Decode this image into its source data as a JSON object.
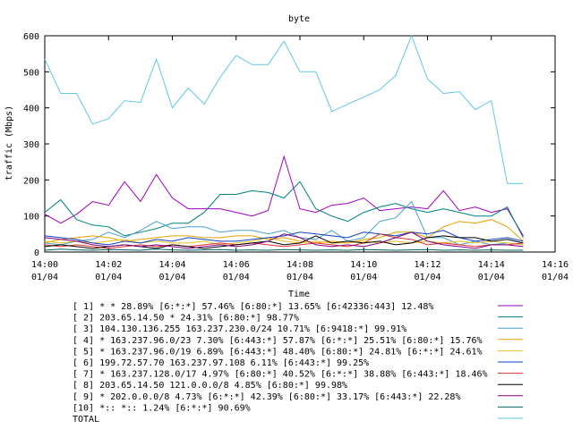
{
  "chart_data": {
    "type": "line",
    "title": "byte",
    "xlabel": "Time",
    "ylabel": "traffic (Mbps)",
    "ylim": [
      0,
      600
    ],
    "yticks": [
      0,
      100,
      200,
      300,
      400,
      500,
      600
    ],
    "xlim_minutes": [
      0,
      16
    ],
    "xticks": [
      {
        "minute": 0,
        "time": "14:00",
        "date": "01/04"
      },
      {
        "minute": 2,
        "time": "14:02",
        "date": "01/04"
      },
      {
        "minute": 4,
        "time": "14:04",
        "date": "01/04"
      },
      {
        "minute": 6,
        "time": "14:06",
        "date": "01/04"
      },
      {
        "minute": 8,
        "time": "14:08",
        "date": "01/04"
      },
      {
        "minute": 10,
        "time": "14:10",
        "date": "01/04"
      },
      {
        "minute": 12,
        "time": "14:12",
        "date": "01/04"
      },
      {
        "minute": 14,
        "time": "14:14",
        "date": "01/04"
      },
      {
        "minute": 16,
        "time": "14:16",
        "date": "01/04"
      }
    ],
    "x": [
      0.0,
      0.5,
      1.0,
      1.5,
      2.0,
      2.5,
      3.0,
      3.5,
      4.0,
      4.5,
      5.0,
      5.5,
      6.0,
      6.5,
      7.0,
      7.5,
      8.0,
      8.5,
      9.0,
      9.5,
      10.0,
      10.5,
      11.0,
      11.5,
      12.0,
      12.5,
      13.0,
      13.5,
      14.0,
      14.5,
      15.0
    ],
    "grid": false,
    "legend_position": "bottom",
    "series": [
      {
        "name": "[ 1] * * 28.89%  [6:*:*] 57.46% [6:80:*] 13.65% [6:42336:443] 12.48%",
        "color": "#a000c0",
        "values": [
          105,
          80,
          105,
          140,
          130,
          195,
          140,
          215,
          150,
          120,
          120,
          120,
          110,
          100,
          115,
          265,
          120,
          110,
          130,
          135,
          150,
          115,
          120,
          125,
          120,
          170,
          115,
          125,
          110,
          120,
          45
        ]
      },
      {
        "name": "[ 2] 203.65.14.50 * 24.31%  [6:80:*] 98.77%",
        "color": "#008080",
        "values": [
          110,
          145,
          90,
          75,
          70,
          45,
          55,
          65,
          80,
          80,
          110,
          160,
          160,
          170,
          165,
          150,
          195,
          120,
          100,
          85,
          110,
          125,
          135,
          120,
          110,
          120,
          110,
          100,
          100,
          125,
          40
        ]
      },
      {
        "name": "[ 3] 104.130.136.255 163.237.230.0/24 10.71%  [6:9418:*] 99.91%",
        "color": "#48a0d0",
        "values": [
          25,
          20,
          30,
          35,
          55,
          40,
          60,
          85,
          65,
          70,
          70,
          55,
          60,
          60,
          50,
          60,
          40,
          35,
          60,
          30,
          40,
          85,
          95,
          140,
          40,
          40,
          20,
          30,
          20,
          25,
          20
        ]
      },
      {
        "name": "[ 4] * 163.237.96.0/23 7.30%  [6:443:*] 57.87% [6:*:*] 25.51% [6:80:*] 15.76%",
        "color": "#e8a000",
        "values": [
          25,
          35,
          40,
          45,
          40,
          30,
          35,
          40,
          45,
          45,
          40,
          40,
          45,
          45,
          35,
          40,
          30,
          25,
          30,
          25,
          35,
          40,
          55,
          55,
          40,
          70,
          85,
          80,
          90,
          70,
          30
        ]
      },
      {
        "name": "[ 5] * 163.237.96.0/19 6.89%  [6:443:*] 48.40% [6:80:*] 24.81% [6:*:*] 24.61%",
        "color": "#e8c020",
        "values": [
          30,
          25,
          30,
          25,
          30,
          35,
          25,
          30,
          25,
          25,
          30,
          20,
          25,
          30,
          40,
          30,
          25,
          30,
          25,
          25,
          30,
          25,
          30,
          25,
          30,
          25,
          30,
          25,
          30,
          25,
          20
        ]
      },
      {
        "name": "[ 6] 199.72.57.70 163.237.97.108 6.11%  [6:443:*] 99.25%",
        "color": "#1040c0",
        "values": [
          45,
          40,
          35,
          25,
          20,
          30,
          25,
          35,
          30,
          40,
          35,
          30,
          30,
          35,
          40,
          45,
          55,
          50,
          45,
          40,
          55,
          50,
          45,
          55,
          50,
          60,
          40,
          30,
          35,
          40,
          30
        ]
      },
      {
        "name": "[ 7] * 163.237.128.0/17 4.97%  [6:80:*] 40.52% [6:*:*] 38.88% [6:443:*] 18.46%",
        "color": "#e03030",
        "values": [
          20,
          15,
          20,
          15,
          10,
          15,
          20,
          15,
          20,
          15,
          20,
          25,
          20,
          25,
          20,
          15,
          20,
          25,
          20,
          15,
          25,
          50,
          40,
          35,
          20,
          25,
          20,
          15,
          20,
          20,
          25
        ]
      },
      {
        "name": "[ 8] 203.65.14.50 121.0.0.0/8 4.85%  [6:80:*] 99.98%",
        "color": "#000000",
        "values": [
          15,
          20,
          15,
          10,
          15,
          20,
          15,
          10,
          20,
          15,
          10,
          15,
          20,
          25,
          30,
          20,
          25,
          45,
          25,
          30,
          25,
          30,
          20,
          25,
          40,
          45,
          40,
          40,
          30,
          35,
          25
        ]
      },
      {
        "name": "[ 9] * 202.0.0.0/8 4.73%  [6:*:*] 42.39% [6:80:*] 33.17% [6:443:*] 22.28%",
        "color": "#800080",
        "values": [
          40,
          35,
          30,
          20,
          15,
          20,
          15,
          20,
          15,
          10,
          15,
          20,
          15,
          20,
          30,
          50,
          40,
          20,
          15,
          20,
          15,
          25,
          40,
          55,
          30,
          20,
          15,
          10,
          20,
          20,
          15
        ]
      },
      {
        "name": "[10] *:: *:: 1.24%  [6:*:*] 90.69%",
        "color": "#006060",
        "values": [
          5,
          8,
          6,
          5,
          7,
          6,
          5,
          8,
          6,
          5,
          6,
          7,
          5,
          6,
          5,
          7,
          6,
          5,
          6,
          5,
          7,
          6,
          5,
          6,
          7,
          5,
          6,
          5,
          6,
          5,
          5
        ]
      },
      {
        "name": "TOTAL",
        "color": "#60c8e8",
        "values": [
          535,
          440,
          440,
          355,
          370,
          420,
          415,
          535,
          400,
          455,
          410,
          485,
          545,
          520,
          520,
          585,
          500,
          500,
          390,
          410,
          430,
          450,
          490,
          600,
          480,
          440,
          445,
          395,
          420,
          190,
          190
        ]
      }
    ]
  }
}
